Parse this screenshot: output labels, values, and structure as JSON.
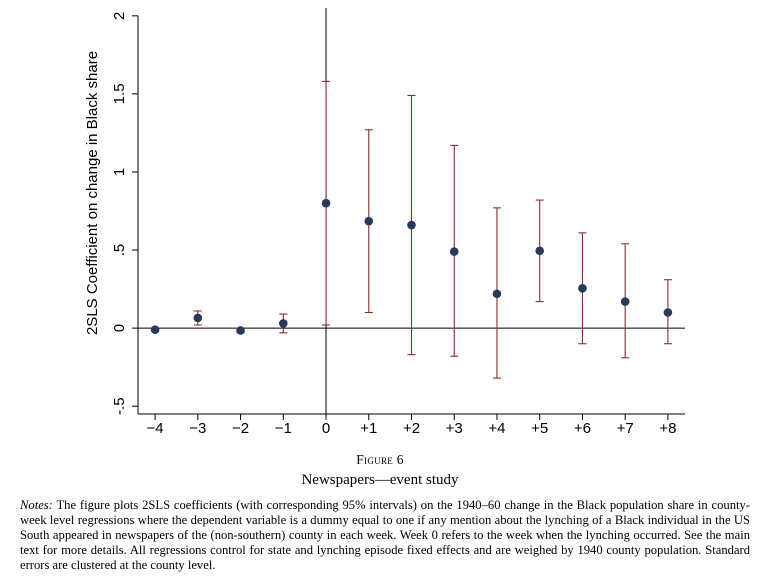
{
  "figure": {
    "label": "Figure 6",
    "title": "Newspapers—event study",
    "notes_label": "Notes:",
    "notes_text": "The figure plots 2SLS coefficients (with corresponding 95% intervals) on the 1940–60 change in the Black population share in county-week level regressions where the dependent variable is a dummy equal to one if any mention about the lynching of a Black individual in the US South appeared in newspapers of the (non-southern) county in each week. Week 0 refers to the week when the lynching occurred. See the main text for more details. All regressions control for state and lynching episode fixed effects and are weighed by 1940 county population. Standard errors are clustered at the county level."
  },
  "colors": {
    "marker": "#253a5e",
    "errorbar": "#8b2d2d",
    "axis": "#000000"
  },
  "chart_data": {
    "type": "scatter",
    "title": "",
    "xlabel": "",
    "ylabel": "2SLS Coefficient on change in Black share",
    "ylim": [
      -0.55,
      2.05
    ],
    "xlim": [
      -4.4,
      8.4
    ],
    "yticks": [
      -0.5,
      0,
      0.5,
      1,
      1.5,
      2
    ],
    "ytick_labels": [
      "-.5",
      "0",
      ".5",
      "1",
      "1.5",
      "2"
    ],
    "categories": [
      "−4",
      "−3",
      "−2",
      "−1",
      "0",
      "+1",
      "+2",
      "+3",
      "+4",
      "+5",
      "+6",
      "+7",
      "+8"
    ],
    "x": [
      -4,
      -3,
      -2,
      -1,
      0,
      1,
      2,
      3,
      4,
      5,
      6,
      7,
      8
    ],
    "coef": [
      -0.01,
      0.065,
      -0.015,
      0.03,
      0.8,
      0.685,
      0.66,
      0.49,
      0.22,
      0.495,
      0.255,
      0.17,
      0.1
    ],
    "ci_low": [
      -0.02,
      0.02,
      -0.03,
      -0.03,
      0.02,
      0.1,
      -0.17,
      -0.18,
      -0.32,
      0.17,
      -0.1,
      -0.19,
      -0.1
    ],
    "ci_high": [
      0.0,
      0.11,
      0.0,
      0.09,
      1.58,
      1.27,
      1.49,
      1.17,
      0.77,
      0.82,
      0.61,
      0.54,
      0.31
    ],
    "reference_lines": {
      "x": 0,
      "y": 0
    },
    "grid": false,
    "legend": "none"
  }
}
